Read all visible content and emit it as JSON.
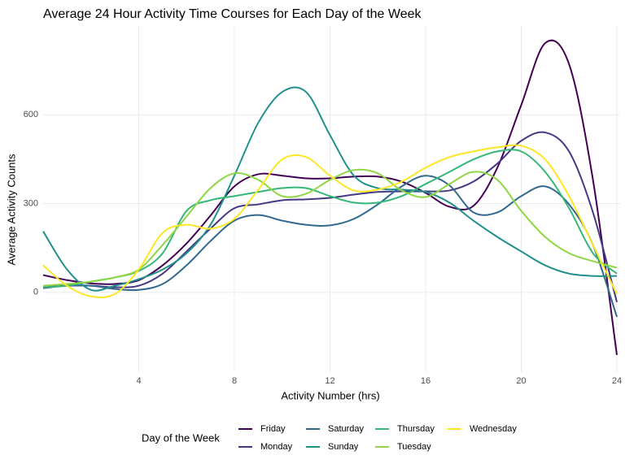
{
  "chart_data": {
    "type": "line",
    "title": "Average 24 Hour Activity Time Courses for Each Day of the Week",
    "x_label": "Activity Number (hrs)",
    "y_label": "Average Activity Counts",
    "legend_title": "Day of the Week",
    "x": [
      0,
      1,
      2,
      3,
      4,
      5,
      6,
      7,
      8,
      9,
      10,
      11,
      12,
      13,
      14,
      15,
      16,
      17,
      18,
      19,
      20,
      21,
      22,
      23,
      24
    ],
    "xlim": [
      0,
      24
    ],
    "xticks": [
      4,
      8,
      12,
      16,
      20,
      24
    ],
    "ylim": [
      -270,
      900
    ],
    "yticks": [
      0,
      300,
      600
    ],
    "grid": true,
    "legend": "bottom",
    "series": [
      {
        "name": "Friday",
        "color": "#440154",
        "values": [
          58,
          41,
          30,
          28,
          41,
          91,
          165,
          259,
          358,
          399,
          394,
          385,
          385,
          391,
          391,
          374,
          336,
          289,
          292,
          421,
          633,
          842,
          771,
          380,
          -212
        ]
      },
      {
        "name": "Monday",
        "color": "#443a83",
        "values": [
          17,
          22,
          22,
          17,
          22,
          63,
          138,
          215,
          284,
          297,
          311,
          314,
          319,
          330,
          339,
          341,
          341,
          344,
          374,
          435,
          512,
          540,
          476,
          270,
          -33
        ]
      },
      {
        "name": "Saturday",
        "color": "#31688e",
        "values": [
          14,
          22,
          22,
          11,
          8,
          28,
          91,
          173,
          242,
          261,
          242,
          228,
          226,
          248,
          297,
          358,
          394,
          361,
          270,
          270,
          325,
          358,
          297,
          160,
          -83
        ]
      },
      {
        "name": "Sunday",
        "color": "#21908d",
        "values": [
          206,
          77,
          8,
          22,
          44,
          77,
          132,
          228,
          394,
          573,
          677,
          677,
          531,
          394,
          352,
          347,
          339,
          303,
          242,
          187,
          138,
          91,
          63,
          55,
          55
        ]
      },
      {
        "name": "Thursday",
        "color": "#35b779",
        "values": [
          17,
          22,
          36,
          50,
          72,
          132,
          275,
          311,
          325,
          339,
          352,
          352,
          325,
          303,
          303,
          325,
          366,
          407,
          449,
          476,
          476,
          407,
          284,
          132,
          63
        ]
      },
      {
        "name": "Tuesday",
        "color": "#8fd744",
        "values": [
          22,
          28,
          36,
          50,
          77,
          160,
          256,
          352,
          402,
          380,
          325,
          333,
          380,
          413,
          402,
          344,
          322,
          366,
          407,
          380,
          275,
          187,
          132,
          105,
          83
        ]
      },
      {
        "name": "Wednesday",
        "color": "#fde725",
        "values": [
          91,
          22,
          -14,
          -6,
          77,
          201,
          228,
          215,
          248,
          347,
          449,
          457,
          394,
          344,
          347,
          374,
          421,
          457,
          476,
          490,
          495,
          449,
          325,
          160,
          -6
        ]
      }
    ]
  }
}
